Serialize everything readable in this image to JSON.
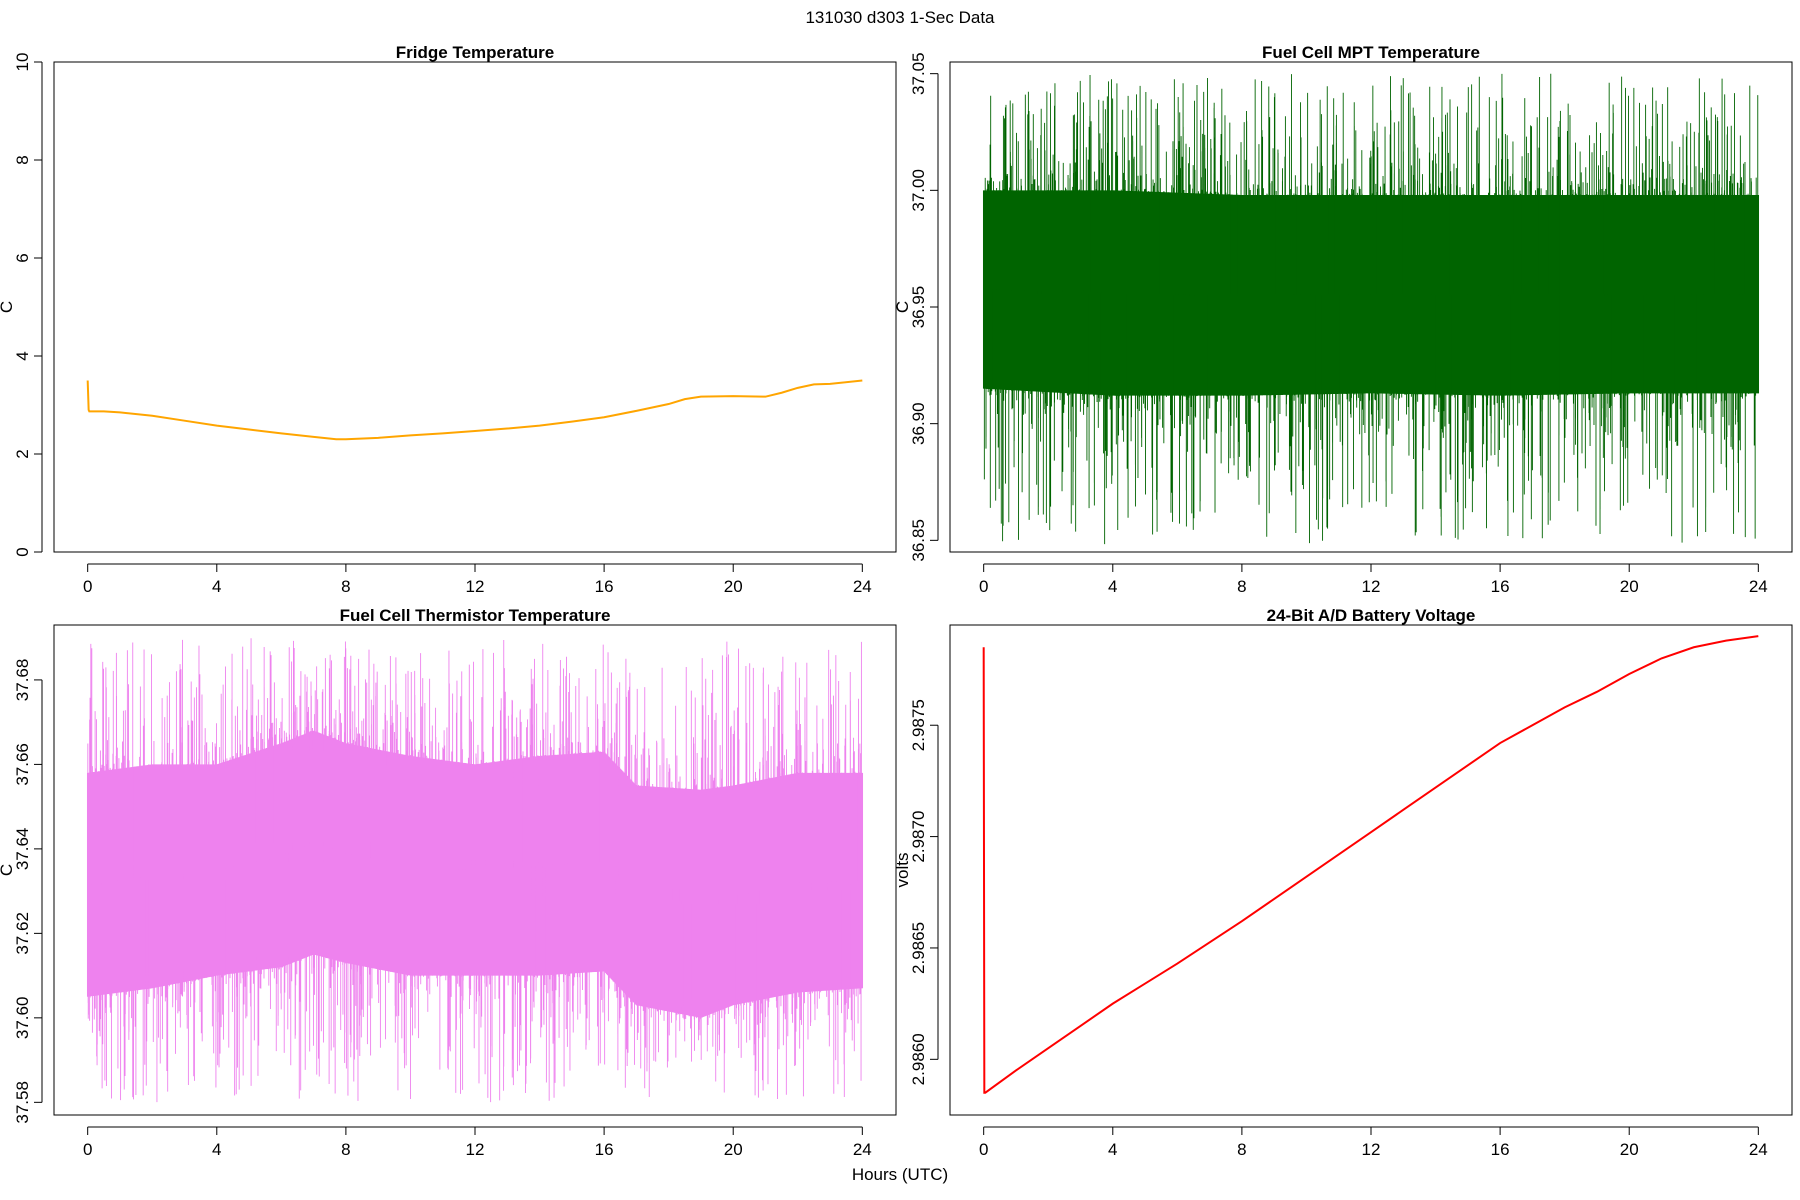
{
  "figure": {
    "title": "131030   d303   1-Sec Data",
    "xlabel": "Hours (UTC)"
  },
  "chart_data": [
    {
      "type": "line",
      "title": "Fridge Temperature",
      "xlabel": "",
      "ylabel": "C",
      "xlim": [
        0,
        24
      ],
      "ylim": [
        0,
        10
      ],
      "xticks": [
        0,
        4,
        8,
        12,
        16,
        20,
        24
      ],
      "xtick_labels": [
        "0",
        "4",
        "8",
        "12",
        "16",
        "20",
        "24"
      ],
      "yticks": [
        0,
        2,
        4,
        6,
        8,
        10
      ],
      "ytick_labels": [
        "0",
        "2",
        "4",
        "6",
        "8",
        "10"
      ],
      "color": "#FFA500",
      "series": [
        {
          "x": [
            0,
            0.03,
            0.05,
            0.5,
            1,
            2,
            3,
            4,
            5,
            6,
            7,
            7.7,
            8,
            9,
            10,
            11,
            12,
            13,
            14,
            15,
            16,
            17,
            18,
            18.5,
            19,
            20,
            21,
            21.5,
            22,
            22.5,
            23,
            24
          ],
          "y": [
            3.5,
            2.9,
            2.87,
            2.87,
            2.85,
            2.78,
            2.68,
            2.58,
            2.5,
            2.42,
            2.35,
            2.3,
            2.3,
            2.33,
            2.38,
            2.42,
            2.47,
            2.52,
            2.58,
            2.66,
            2.75,
            2.88,
            3.02,
            3.12,
            3.17,
            3.18,
            3.17,
            3.25,
            3.35,
            3.42,
            3.43,
            3.5
          ]
        }
      ]
    },
    {
      "type": "line",
      "title": "Fuel Cell MPT Temperature",
      "xlabel": "",
      "ylabel": "C",
      "xlim": [
        0,
        24
      ],
      "ylim": [
        36.845,
        37.055
      ],
      "xticks": [
        0,
        4,
        8,
        12,
        16,
        20,
        24
      ],
      "xtick_labels": [
        "0",
        "4",
        "8",
        "12",
        "16",
        "20",
        "24"
      ],
      "yticks": [
        36.85,
        36.9,
        36.95,
        37.0,
        37.05
      ],
      "ytick_labels": [
        "36.85",
        "36.90",
        "36.95",
        "37.00",
        "37.05"
      ],
      "color": "#006400",
      "series": [
        {
          "x": [
            0,
            4,
            8,
            12,
            16,
            20,
            24
          ],
          "y_mean": [
            36.958,
            36.955,
            36.955,
            36.955,
            36.955,
            36.955,
            36.955
          ],
          "band_low": [
            36.915,
            36.912,
            36.912,
            36.913,
            36.912,
            36.913,
            36.913
          ],
          "band_high": [
            37.0,
            37.0,
            36.998,
            36.998,
            36.998,
            36.998,
            36.998
          ],
          "y_min": 36.848,
          "y_max": 37.05
        }
      ]
    },
    {
      "type": "line",
      "title": "Fuel Cell Thermistor Temperature",
      "xlabel": "",
      "ylabel": "C",
      "xlim": [
        0,
        24
      ],
      "ylim": [
        37.577,
        37.693
      ],
      "xticks": [
        0,
        4,
        8,
        12,
        16,
        20,
        24
      ],
      "xtick_labels": [
        "0",
        "4",
        "8",
        "12",
        "16",
        "20",
        "24"
      ],
      "yticks": [
        37.58,
        37.6,
        37.62,
        37.64,
        37.66,
        37.68
      ],
      "ytick_labels": [
        "37.58",
        "37.60",
        "37.62",
        "37.64",
        "37.66",
        "37.68"
      ],
      "color": "#EE82EE",
      "series": [
        {
          "x": [
            0,
            2,
            4,
            6,
            7,
            8,
            10,
            12,
            14,
            16,
            17,
            19,
            20,
            22,
            24
          ],
          "y_mean": [
            37.632,
            37.633,
            37.635,
            37.638,
            37.64,
            37.639,
            37.636,
            37.635,
            37.636,
            37.637,
            37.63,
            37.628,
            37.629,
            37.632,
            37.632
          ],
          "band_low": [
            37.605,
            37.607,
            37.61,
            37.612,
            37.615,
            37.613,
            37.61,
            37.61,
            37.61,
            37.611,
            37.603,
            37.6,
            37.603,
            37.606,
            37.607
          ],
          "band_high": [
            37.658,
            37.66,
            37.66,
            37.665,
            37.668,
            37.665,
            37.662,
            37.66,
            37.662,
            37.663,
            37.655,
            37.654,
            37.655,
            37.658,
            37.658
          ],
          "y_min": 37.58,
          "y_max": 37.69
        }
      ]
    },
    {
      "type": "line",
      "title": "24-Bit A/D Battery Voltage",
      "xlabel": "",
      "ylabel": "volts",
      "xlim": [
        0,
        24
      ],
      "ylim": [
        2.98575,
        2.98795
      ],
      "xticks": [
        0,
        4,
        8,
        12,
        16,
        20,
        24
      ],
      "xtick_labels": [
        "0",
        "4",
        "8",
        "12",
        "16",
        "20",
        "24"
      ],
      "yticks": [
        2.986,
        2.9865,
        2.987,
        2.9875
      ],
      "ytick_labels": [
        "2.9860",
        "2.9865",
        "2.9870",
        "2.9875"
      ],
      "color": "#FF0000",
      "series": [
        {
          "x": [
            0,
            0.02,
            0.05,
            1,
            2,
            3,
            4,
            6,
            8,
            9,
            10,
            11,
            12,
            13,
            14,
            15,
            16,
            17,
            18,
            19,
            20,
            21,
            22,
            23,
            24
          ],
          "y": [
            2.98785,
            2.98585,
            2.98585,
            2.98595,
            2.98605,
            2.98615,
            2.98625,
            2.98643,
            2.98662,
            2.98672,
            2.98682,
            2.98692,
            2.98702,
            2.98712,
            2.98722,
            2.98732,
            2.98742,
            2.9875,
            2.98758,
            2.98765,
            2.98773,
            2.9878,
            2.98785,
            2.98788,
            2.9879
          ]
        }
      ]
    }
  ]
}
